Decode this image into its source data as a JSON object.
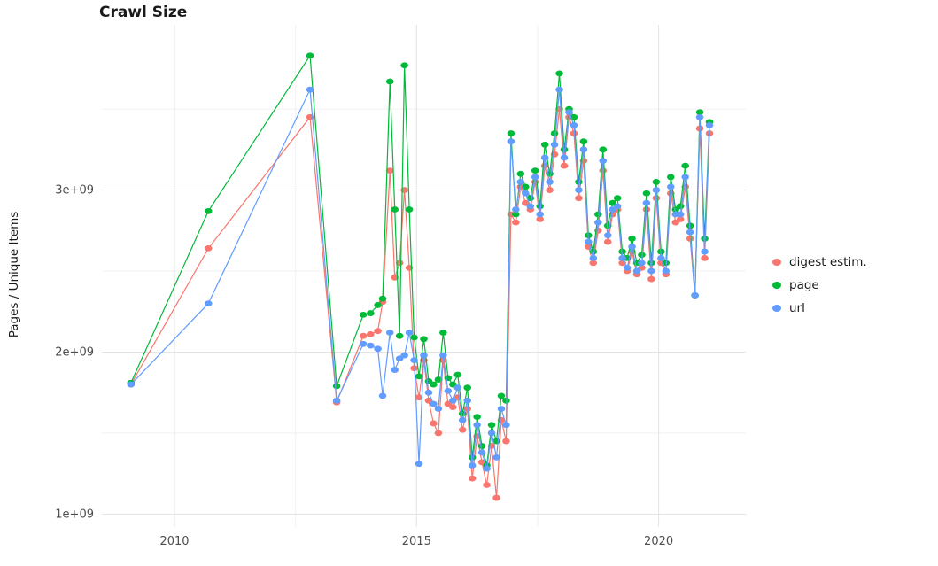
{
  "title": "Crawl Size",
  "ylabel": "Pages / Unique Items",
  "legend": {
    "items": [
      {
        "label": "digest estim.",
        "color": "#F8766D"
      },
      {
        "label": "page",
        "color": "#00BA38"
      },
      {
        "label": "url",
        "color": "#619CFF"
      }
    ]
  },
  "chart_data": {
    "type": "line",
    "title": "Crawl Size",
    "xlabel": "",
    "ylabel": "Pages / Unique Items",
    "y_unit": "count x 1e9",
    "x_unit": "year (decimal)",
    "grid": true,
    "legend_position": "right",
    "xlim": [
      2008.5,
      2021.8
    ],
    "ylim": [
      0.92,
      4.02
    ],
    "x_ticks": [
      {
        "v": 2010,
        "label": "2010"
      },
      {
        "v": 2015,
        "label": "2015"
      },
      {
        "v": 2020,
        "label": "2020"
      }
    ],
    "y_ticks": [
      {
        "v": 1,
        "label": "1e+09"
      },
      {
        "v": 2,
        "label": "2e+09"
      },
      {
        "v": 3,
        "label": "3e+09"
      }
    ],
    "x_minor": [
      2012.5,
      2017.5
    ],
    "y_minor": [
      1.5,
      2.5,
      3.5
    ],
    "x": [
      2009.1,
      2010.7,
      2012.8,
      2013.35,
      2013.9,
      2014.05,
      2014.2,
      2014.3,
      2014.45,
      2014.55,
      2014.65,
      2014.75,
      2014.85,
      2014.95,
      2015.05,
      2015.15,
      2015.25,
      2015.35,
      2015.45,
      2015.55,
      2015.65,
      2015.75,
      2015.85,
      2015.95,
      2016.05,
      2016.15,
      2016.25,
      2016.35,
      2016.45,
      2016.55,
      2016.65,
      2016.75,
      2016.85,
      2016.95,
      2017.05,
      2017.15,
      2017.25,
      2017.35,
      2017.45,
      2017.55,
      2017.65,
      2017.75,
      2017.85,
      2017.95,
      2018.05,
      2018.15,
      2018.25,
      2018.35,
      2018.45,
      2018.55,
      2018.65,
      2018.75,
      2018.85,
      2018.95,
      2019.05,
      2019.15,
      2019.25,
      2019.35,
      2019.45,
      2019.55,
      2019.65,
      2019.75,
      2019.85,
      2019.95,
      2020.05,
      2020.15,
      2020.25,
      2020.35,
      2020.45,
      2020.55,
      2020.65,
      2020.75,
      2020.85,
      2020.95,
      2021.05
    ],
    "series": [
      {
        "name": "digest estim.",
        "id": "digest-estim",
        "color": "#F8766D",
        "values": [
          1.8,
          2.64,
          3.45,
          1.69,
          2.1,
          2.11,
          2.13,
          2.31,
          3.12,
          2.46,
          2.55,
          3.0,
          2.52,
          1.9,
          1.72,
          1.95,
          1.7,
          1.56,
          1.5,
          1.95,
          1.68,
          1.66,
          1.72,
          1.52,
          1.65,
          1.22,
          1.48,
          1.32,
          1.18,
          1.42,
          1.1,
          1.58,
          1.45,
          2.85,
          2.8,
          3.02,
          2.92,
          2.88,
          3.05,
          2.82,
          3.15,
          3.0,
          3.22,
          3.5,
          3.15,
          3.45,
          3.35,
          2.95,
          3.18,
          2.65,
          2.55,
          2.75,
          3.12,
          2.68,
          2.85,
          2.88,
          2.55,
          2.5,
          2.62,
          2.48,
          2.52,
          2.88,
          2.45,
          2.95,
          2.55,
          2.48,
          2.98,
          2.8,
          2.82,
          3.02,
          2.7,
          2.35,
          3.38,
          2.58,
          3.35
        ]
      },
      {
        "name": "page",
        "id": "page",
        "color": "#00BA38",
        "values": [
          1.81,
          2.87,
          3.83,
          1.79,
          2.23,
          2.24,
          2.29,
          2.33,
          3.67,
          2.88,
          2.1,
          3.77,
          2.88,
          2.09,
          1.85,
          2.08,
          1.82,
          1.8,
          1.83,
          2.12,
          1.84,
          1.8,
          1.86,
          1.62,
          1.78,
          1.35,
          1.6,
          1.42,
          1.3,
          1.55,
          1.45,
          1.73,
          1.7,
          3.35,
          2.85,
          3.1,
          3.02,
          2.95,
          3.12,
          2.9,
          3.28,
          3.1,
          3.35,
          3.72,
          3.25,
          3.5,
          3.45,
          3.05,
          3.3,
          2.72,
          2.62,
          2.85,
          3.25,
          2.78,
          2.92,
          2.95,
          2.62,
          2.58,
          2.7,
          2.55,
          2.6,
          2.98,
          2.55,
          3.05,
          2.62,
          2.55,
          3.08,
          2.88,
          2.9,
          3.15,
          2.78,
          2.35,
          3.48,
          2.7,
          3.42
        ]
      },
      {
        "name": "url",
        "id": "url",
        "color": "#619CFF",
        "values": [
          1.8,
          2.3,
          3.62,
          1.7,
          2.05,
          2.04,
          2.02,
          1.73,
          2.12,
          1.89,
          1.96,
          1.98,
          2.12,
          1.95,
          1.31,
          1.98,
          1.75,
          1.68,
          1.65,
          1.98,
          1.76,
          1.7,
          1.78,
          1.58,
          1.7,
          1.3,
          1.55,
          1.38,
          1.28,
          1.5,
          1.35,
          1.65,
          1.55,
          3.3,
          2.88,
          3.05,
          2.98,
          2.9,
          3.08,
          2.85,
          3.2,
          3.05,
          3.28,
          3.62,
          3.2,
          3.48,
          3.4,
          3.0,
          3.25,
          2.68,
          2.58,
          2.8,
          3.18,
          2.72,
          2.88,
          2.9,
          2.58,
          2.52,
          2.65,
          2.5,
          2.55,
          2.92,
          2.5,
          3.0,
          2.58,
          2.5,
          3.02,
          2.85,
          2.85,
          3.08,
          2.74,
          2.35,
          3.45,
          2.62,
          3.4
        ]
      }
    ]
  }
}
